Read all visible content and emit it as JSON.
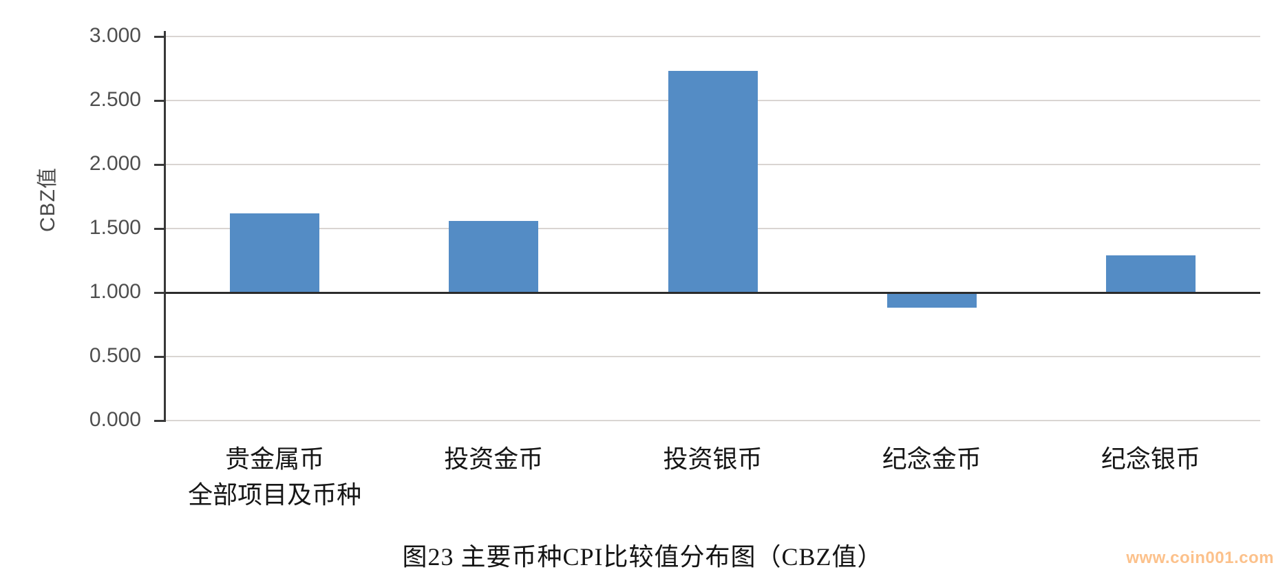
{
  "watermark": {
    "text": "www.coin001.com",
    "color": "#fcc18b"
  },
  "chart_data": {
    "type": "bar",
    "title": "图23 主要币种CPI比较值分布图（CBZ值）",
    "ylabel": "CBZ值",
    "xlabel": "",
    "categories": [
      [
        "贵金属币",
        "全部项目及币种"
      ],
      [
        "投资金币"
      ],
      [
        "投资银币"
      ],
      [
        "纪念金币"
      ],
      [
        "纪念银币"
      ]
    ],
    "values": [
      1.62,
      1.56,
      2.73,
      0.88,
      1.29
    ],
    "baseline": 1.0,
    "ylim": [
      0,
      3
    ],
    "yticks": [
      0,
      0.5,
      1,
      1.5,
      2,
      2.5,
      3
    ],
    "ytick_labels": [
      "0.000",
      "0.500",
      "1.000",
      "1.500",
      "2.000",
      "2.500",
      "3.000"
    ],
    "bar_color": "#548cc5",
    "grid": true,
    "gridline_color": "#d9d5d2",
    "axis_color": "#2b2b2b",
    "legend": null
  }
}
